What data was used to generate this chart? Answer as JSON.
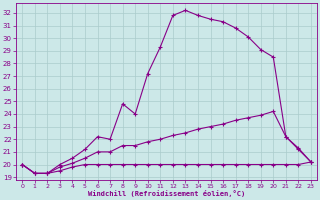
{
  "xlabel": "Windchill (Refroidissement éolien,°C)",
  "background_color": "#cce8e8",
  "grid_color": "#aacccc",
  "line_color": "#880088",
  "ylim": [
    18.8,
    32.8
  ],
  "xlim": [
    -0.5,
    23.5
  ],
  "yticks": [
    19,
    20,
    21,
    22,
    23,
    24,
    25,
    26,
    27,
    28,
    29,
    30,
    31,
    32
  ],
  "xticks": [
    0,
    1,
    2,
    3,
    4,
    5,
    6,
    7,
    8,
    9,
    10,
    11,
    12,
    13,
    14,
    15,
    16,
    17,
    18,
    19,
    20,
    21,
    22,
    23
  ],
  "series": [
    {
      "x": [
        0,
        1,
        2,
        3,
        4,
        5,
        6,
        7,
        8,
        9,
        10,
        11,
        12,
        13,
        14,
        15,
        16,
        17,
        18,
        19,
        20,
        21,
        22,
        23
      ],
      "y": [
        20.0,
        19.3,
        19.3,
        19.5,
        19.8,
        20.0,
        20.0,
        20.0,
        20.0,
        20.0,
        20.0,
        20.0,
        20.0,
        20.0,
        20.0,
        20.0,
        20.0,
        20.0,
        20.0,
        20.0,
        20.0,
        20.0,
        20.0,
        20.2
      ]
    },
    {
      "x": [
        0,
        1,
        2,
        3,
        4,
        5,
        6,
        7,
        8,
        9,
        10,
        11,
        12,
        13,
        14,
        15,
        16,
        17,
        18,
        19,
        20,
        21,
        22,
        23
      ],
      "y": [
        20.0,
        19.3,
        19.3,
        19.8,
        20.1,
        20.5,
        21.0,
        21.0,
        21.5,
        21.5,
        21.8,
        22.0,
        22.3,
        22.5,
        22.8,
        23.0,
        23.2,
        23.5,
        23.7,
        23.9,
        24.2,
        22.2,
        21.3,
        20.2
      ]
    },
    {
      "x": [
        0,
        1,
        2,
        3,
        4,
        5,
        6,
        7,
        8,
        9,
        10,
        11,
        12,
        13,
        14,
        15,
        16,
        17,
        18,
        19,
        20,
        21,
        22,
        23
      ],
      "y": [
        20.0,
        19.3,
        19.3,
        20.0,
        20.5,
        21.2,
        22.2,
        22.0,
        24.8,
        24.0,
        27.2,
        29.3,
        31.8,
        32.2,
        31.8,
        31.5,
        31.3,
        30.8,
        30.1,
        29.1,
        28.5,
        22.2,
        21.2,
        20.2
      ]
    }
  ]
}
